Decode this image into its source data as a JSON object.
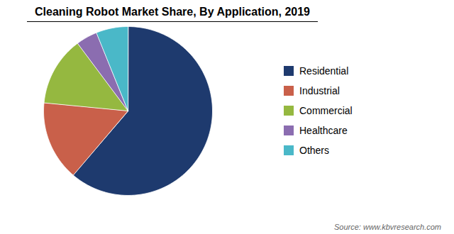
{
  "chart_data": {
    "type": "pie",
    "title": "Cleaning Robot Market Share, By Application, 2019",
    "categories": [
      "Residential",
      "Industrial",
      "Commercial",
      "Healthcare",
      "Others"
    ],
    "values": [
      60,
      15,
      13,
      4,
      6
    ],
    "colors": [
      "#1e3a6e",
      "#c9604a",
      "#95b840",
      "#8b6db0",
      "#4ab8c8"
    ],
    "legend": "right",
    "annotations": [
      "Source: www.kbvresearch.com"
    ]
  }
}
